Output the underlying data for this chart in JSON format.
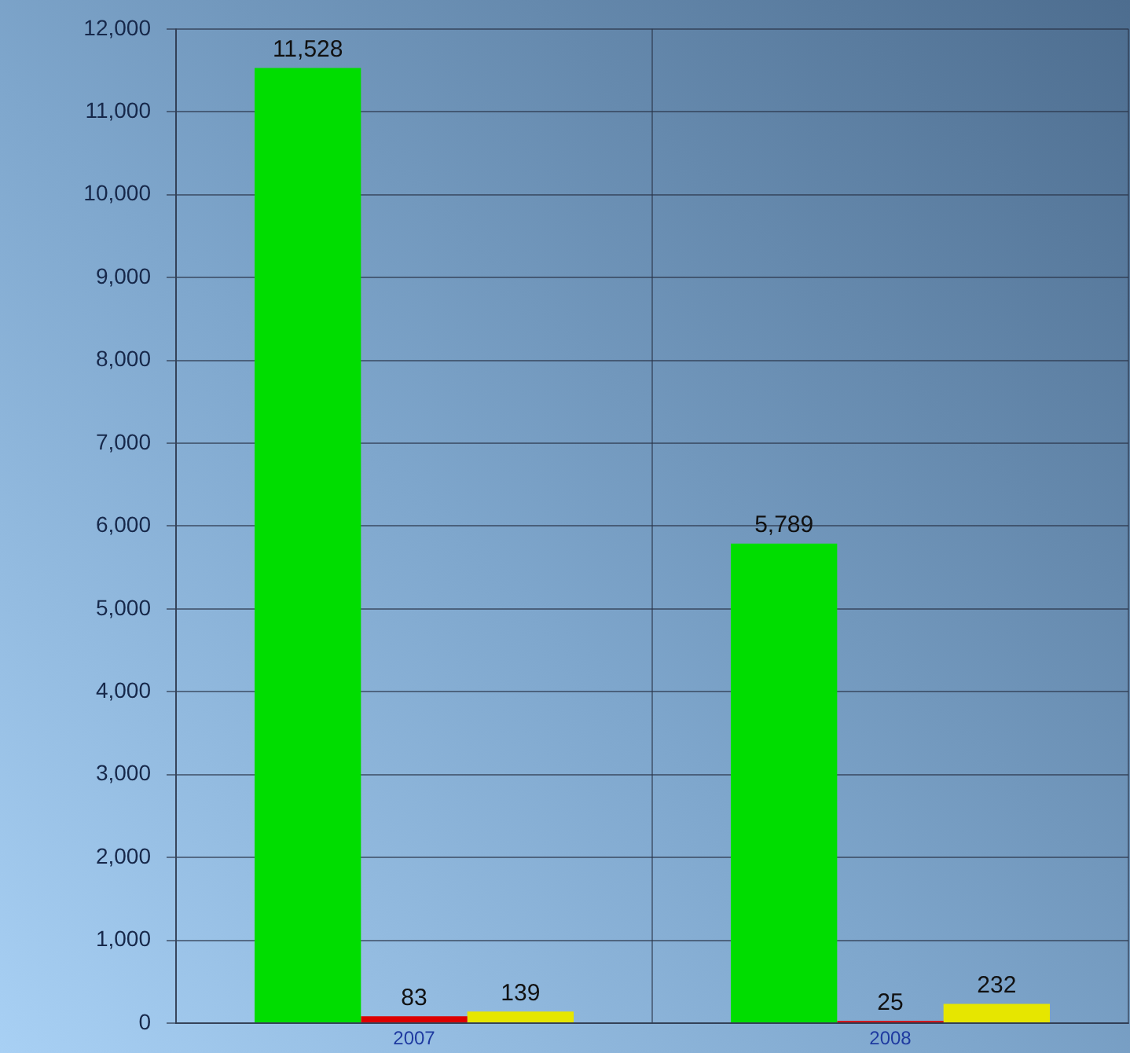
{
  "chart_data": {
    "type": "bar",
    "categories": [
      "2007",
      "2008"
    ],
    "series": [
      {
        "color": "#00dd00",
        "values": [
          11528,
          5789
        ],
        "value_labels": [
          "11,528",
          "5,789"
        ]
      },
      {
        "color": "#dd0000",
        "values": [
          83,
          25
        ],
        "value_labels": [
          "83",
          "25"
        ]
      },
      {
        "color": "#e6e600",
        "values": [
          139,
          232
        ],
        "value_labels": [
          "139",
          "232"
        ]
      }
    ],
    "ylim": [
      0,
      12000
    ],
    "yticks": [
      0,
      {
        "value": 1000,
        "label": "1,000"
      },
      {
        "value": 2000,
        "label": "2,000"
      },
      {
        "value": 3000,
        "label": "3,000"
      },
      {
        "value": 4000,
        "label": "4,000"
      },
      {
        "value": 5000,
        "label": "5,000"
      },
      {
        "value": 6000,
        "label": "6,000"
      },
      {
        "value": 7000,
        "label": "7,000"
      },
      {
        "value": 8000,
        "label": "8,000"
      },
      {
        "value": 9000,
        "label": "9,000"
      },
      {
        "value": 10000,
        "label": "10,000"
      },
      {
        "value": 11000,
        "label": "11,000"
      },
      {
        "value": 12000,
        "label": "12,000"
      }
    ],
    "grid": true
  }
}
